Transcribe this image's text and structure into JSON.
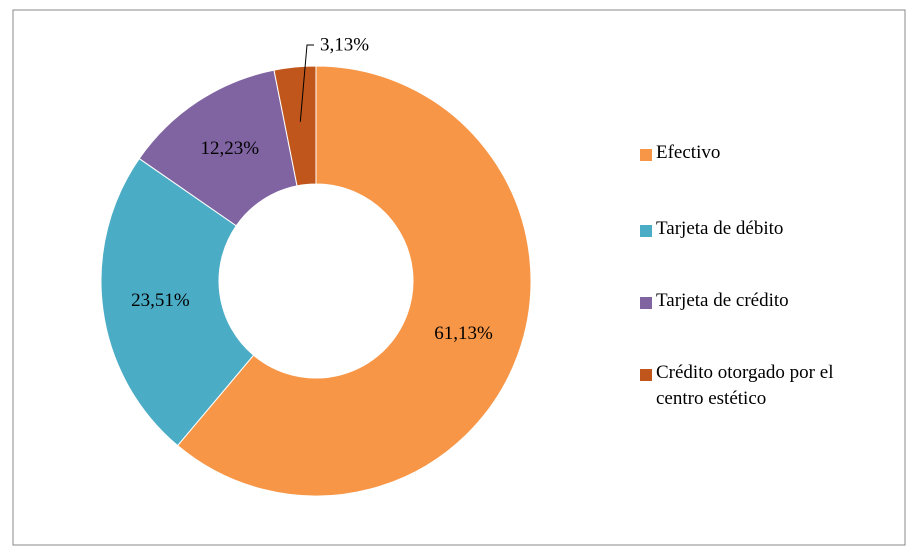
{
  "chart_data": {
    "type": "donut",
    "categories": [
      "Efectivo",
      "Tarjeta de débito",
      "Tarjeta de crédito",
      "Crédito otorgado por el centro estético"
    ],
    "values": [
      61.13,
      23.51,
      12.23,
      3.13
    ],
    "value_labels": [
      "61,13%",
      "23,51%",
      "12,23%",
      "3,13%"
    ],
    "colors": [
      "#f79646",
      "#4bacc6",
      "#8064a2",
      "#c0561b"
    ],
    "legend": "right"
  }
}
